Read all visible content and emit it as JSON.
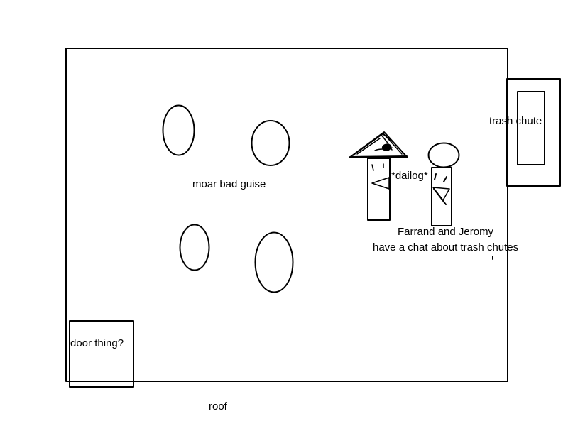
{
  "labels": {
    "bad_guys": "moar bad guise",
    "dialog": "*dailog*",
    "caption_line1": "Farrand and Jeromy",
    "caption_line2": "have a chat about trash chutes",
    "trash_chute": "trash chute",
    "door": "door thing?",
    "roof": "roof"
  },
  "colors": {
    "stroke": "#000000",
    "background": "#ffffff"
  }
}
